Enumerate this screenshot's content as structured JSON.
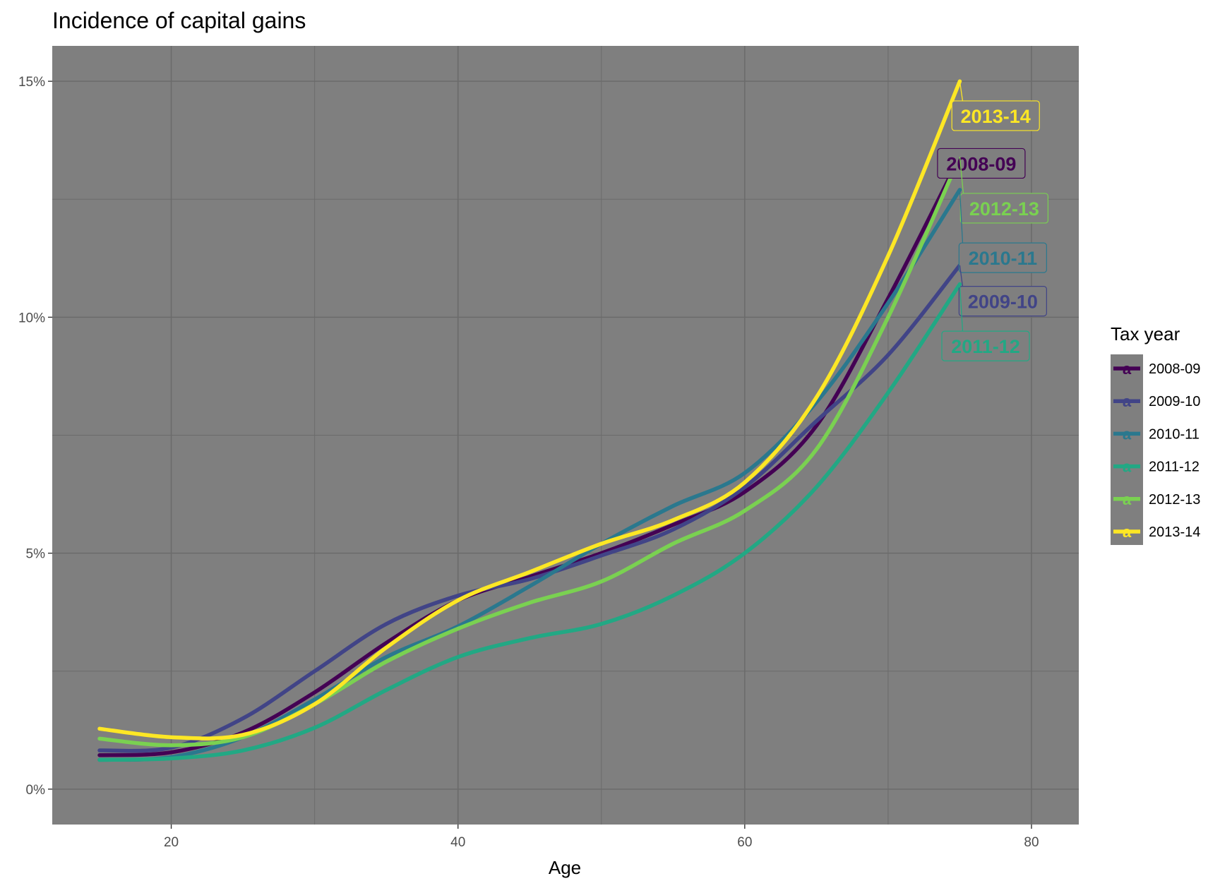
{
  "chart_data": {
    "type": "line",
    "title": "Incidence of capital gains",
    "xlabel": "Age",
    "ylabel": "",
    "xlim": [
      11.7,
      83.3
    ],
    "ylim": [
      -0.0075,
      0.1575
    ],
    "xticks": [
      20,
      40,
      60,
      80
    ],
    "xtick_labels": [
      "20",
      "40",
      "60",
      "80"
    ],
    "yticks": [
      0,
      0.05,
      0.1,
      0.15
    ],
    "ytick_labels": [
      "0%",
      "5%",
      "10%",
      "15%"
    ],
    "x_minor": [
      30,
      50,
      70
    ],
    "y_minor": [
      0.025,
      0.075,
      0.125
    ],
    "panel_background": "#7f7f7f",
    "grid_color": "#6b6b6b",
    "legend": {
      "title": "Tax year",
      "position": "right",
      "key_glyph": "a"
    },
    "x": [
      15,
      20,
      25,
      30,
      35,
      40,
      45,
      50,
      55,
      60,
      65,
      70,
      75
    ],
    "series": [
      {
        "name": "2008-09",
        "color": "#440154",
        "values": [
          0.0072,
          0.0078,
          0.012,
          0.0205,
          0.031,
          0.04,
          0.045,
          0.05,
          0.056,
          0.063,
          0.077,
          0.104,
          0.134
        ]
      },
      {
        "name": "2009-10",
        "color": "#414487",
        "values": [
          0.0082,
          0.0088,
          0.015,
          0.025,
          0.035,
          0.041,
          0.0445,
          0.0495,
          0.055,
          0.064,
          0.078,
          0.092,
          0.111
        ]
      },
      {
        "name": "2010-11",
        "color": "#2a788e",
        "values": [
          0.0062,
          0.0068,
          0.011,
          0.019,
          0.028,
          0.0345,
          0.043,
          0.052,
          0.06,
          0.067,
          0.082,
          0.103,
          0.127
        ]
      },
      {
        "name": "2011-12",
        "color": "#22a884",
        "values": [
          0.0062,
          0.0065,
          0.0082,
          0.013,
          0.021,
          0.028,
          0.032,
          0.035,
          0.041,
          0.05,
          0.064,
          0.084,
          0.107
        ]
      },
      {
        "name": "2012-13",
        "color": "#7ad151",
        "values": [
          0.0107,
          0.0093,
          0.011,
          0.018,
          0.027,
          0.034,
          0.0395,
          0.044,
          0.052,
          0.059,
          0.072,
          0.1,
          0.134
        ]
      },
      {
        "name": "2013-14",
        "color": "#fde725",
        "values": [
          0.0128,
          0.011,
          0.0115,
          0.018,
          0.03,
          0.04,
          0.046,
          0.052,
          0.057,
          0.065,
          0.083,
          0.113,
          0.15
        ]
      }
    ],
    "direct_labels": [
      {
        "text": "2013-14",
        "color": "#fde725",
        "x": 77.5,
        "y": 0.1427
      },
      {
        "text": "2008-09",
        "color": "#440154",
        "x": 76.5,
        "y": 0.1326
      },
      {
        "text": "2012-13",
        "color": "#7ad151",
        "x": 78.1,
        "y": 0.1231
      },
      {
        "text": "2010-11",
        "color": "#2a788e",
        "x": 78.0,
        "y": 0.1126
      },
      {
        "text": "2009-10",
        "color": "#414487",
        "x": 78.0,
        "y": 0.1034
      },
      {
        "text": "2011-12",
        "color": "#22a884",
        "x": 76.8,
        "y": 0.0939
      }
    ]
  }
}
